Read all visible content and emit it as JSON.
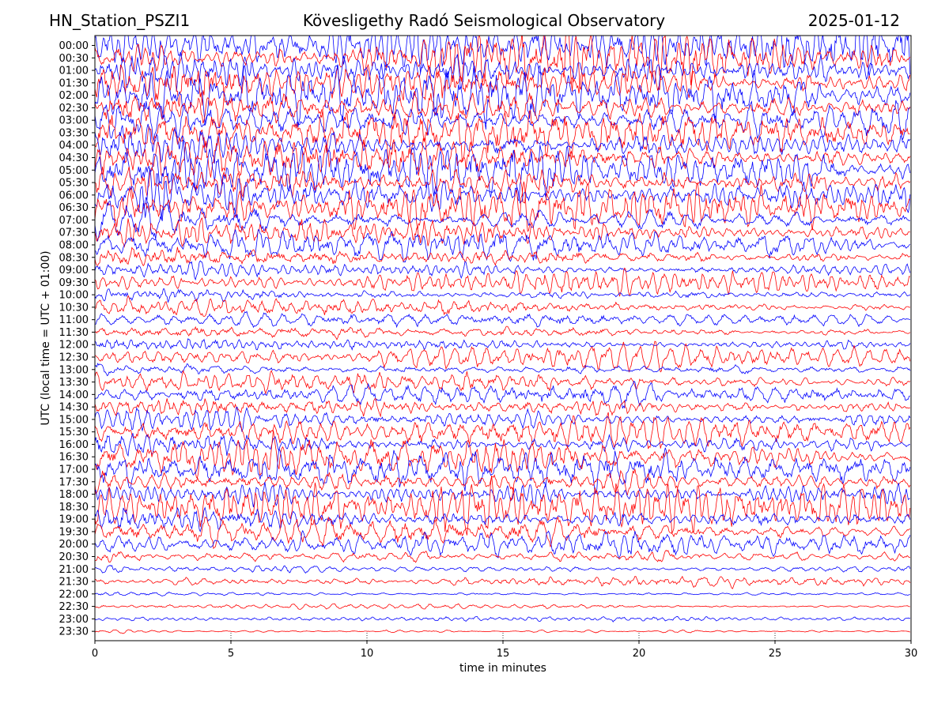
{
  "header": {
    "station": "HN_Station_PSZI1",
    "observatory": "Kövesligethy Radó Seismological Observatory",
    "date": "2025-01-12"
  },
  "chart_data": {
    "type": "line",
    "subtype": "helicorder",
    "xlabel": "time in minutes",
    "ylabel": "UTC (local time = UTC + 01:00)",
    "xlim": [
      0,
      30
    ],
    "x_ticks": [
      "0",
      "5",
      "10",
      "15",
      "20",
      "25",
      "30"
    ],
    "y_ticks": [
      "00:00",
      "00:30",
      "01:00",
      "01:30",
      "02:00",
      "02:30",
      "03:00",
      "03:30",
      "04:00",
      "04:30",
      "05:00",
      "05:30",
      "06:00",
      "06:30",
      "07:00",
      "07:30",
      "08:00",
      "08:30",
      "09:00",
      "09:30",
      "10:00",
      "10:30",
      "11:00",
      "11:30",
      "12:00",
      "12:30",
      "13:00",
      "13:30",
      "14:00",
      "14:30",
      "15:00",
      "15:30",
      "16:00",
      "16:30",
      "17:00",
      "17:30",
      "18:00",
      "18:30",
      "19:00",
      "19:30",
      "20:00",
      "20:30",
      "21:00",
      "21:30",
      "22:00",
      "22:30",
      "23:00",
      "23:30"
    ],
    "trace_colors": [
      "#0000ff",
      "#ff0000"
    ],
    "row_amplitude": [
      3.2,
      3.4,
      3.3,
      3.5,
      3.4,
      3.3,
      3.4,
      3.2,
      3.3,
      3.1,
      3.2,
      3.0,
      2.9,
      2.8,
      2.6,
      2.3,
      1.8,
      1.5,
      1.4,
      1.3,
      1.2,
      1.1,
      1.0,
      1.0,
      1.1,
      1.2,
      1.3,
      1.4,
      1.5,
      1.6,
      1.7,
      1.8,
      2.0,
      2.2,
      2.4,
      2.5,
      2.6,
      2.5,
      2.3,
      2.0,
      1.6,
      1.2,
      0.8,
      0.6,
      0.45,
      0.35,
      0.3,
      0.3
    ],
    "grid": false,
    "minute_markers": true
  }
}
